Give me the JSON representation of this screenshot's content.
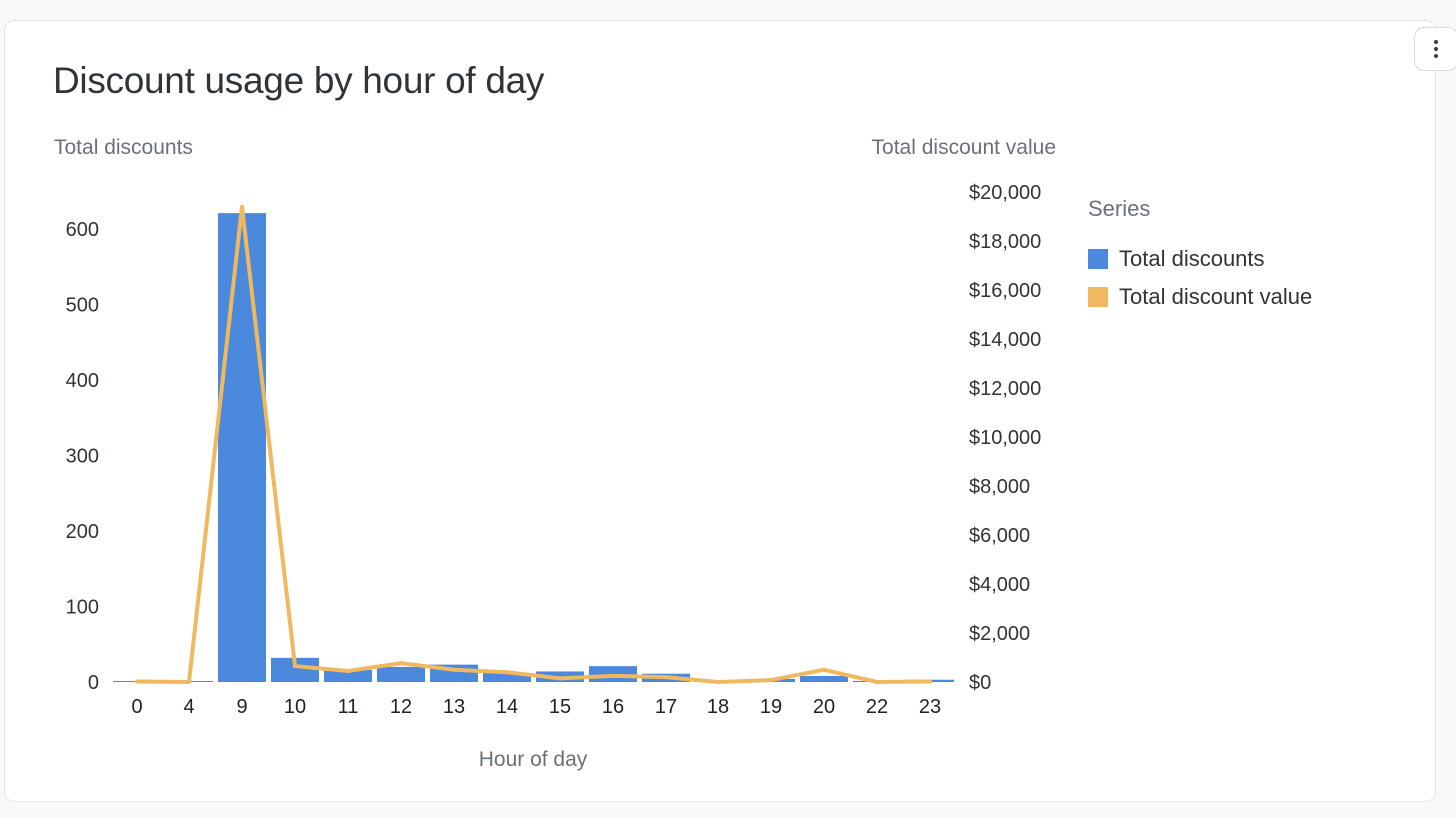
{
  "card": {
    "title": "Discount usage by hour of day",
    "menu_icon": "more-vertical-icon"
  },
  "legend": {
    "title": "Series"
  },
  "colors": {
    "bars": "#4a89dc",
    "line": "#f0b95f",
    "axis_text": "#2f3438",
    "axis_label": "#6b7179"
  },
  "chart_data": {
    "type": "bar",
    "title": "Discount usage by hour of day",
    "categories": [
      "0",
      "4",
      "9",
      "10",
      "11",
      "12",
      "13",
      "14",
      "15",
      "16",
      "17",
      "18",
      "19",
      "20",
      "22",
      "23"
    ],
    "xlabel": "Hour of day",
    "ylabel": "Total discounts",
    "y2label": "Total discount value",
    "ylim": [
      0,
      650
    ],
    "y2lim": [
      0,
      20000
    ],
    "yticks": [
      "0",
      "100",
      "200",
      "300",
      "400",
      "500",
      "600"
    ],
    "y2ticks": [
      "$0",
      "$2,000",
      "$4,000",
      "$6,000",
      "$8,000",
      "$10,000",
      "$12,000",
      "$14,000",
      "$16,000",
      "$18,000",
      "$20,000"
    ],
    "grid": false,
    "legend_position": "right",
    "series": [
      {
        "name": "Total discounts",
        "type": "bar",
        "axis": "left",
        "values": [
          1,
          1,
          621,
          32,
          16,
          20,
          23,
          12,
          14,
          21,
          11,
          2,
          4,
          8,
          1,
          3
        ]
      },
      {
        "name": "Total discount value",
        "type": "line",
        "axis": "right",
        "values": [
          20,
          0,
          19400,
          650,
          450,
          770,
          500,
          400,
          150,
          250,
          200,
          0,
          80,
          500,
          0,
          20
        ]
      }
    ]
  }
}
